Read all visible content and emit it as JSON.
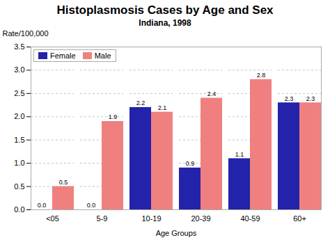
{
  "chart_data": {
    "type": "bar",
    "title": "Histoplasmosis Cases by Age and Sex",
    "subtitle": "Indiana, 1998",
    "xlabel": "Age Groups",
    "ylabel": "Rate/100,000",
    "categories": [
      "<05",
      "5-9",
      "10-19",
      "20-39",
      "40-59",
      "60+"
    ],
    "series": [
      {
        "name": "Female",
        "color": "#2222AA",
        "values": [
          0.0,
          0.0,
          2.2,
          0.9,
          1.1,
          2.3
        ],
        "value_labels": [
          "0.0",
          "0.0",
          "2.2",
          "0.9",
          "1.1",
          "2.3"
        ]
      },
      {
        "name": "Male",
        "color": "#F08080",
        "values": [
          0.5,
          1.9,
          2.1,
          2.4,
          2.8,
          2.3
        ]
      }
    ],
    "ylim": [
      0,
      3.5
    ],
    "yticks": [
      {
        "value": 0,
        "label": "0.0"
      },
      0.5,
      {
        "value": 1,
        "label": "1.0"
      },
      1.5,
      {
        "value": 2,
        "label": "2.0"
      },
      2.5,
      {
        "value": 3,
        "label": "3.0"
      },
      3.5
    ],
    "grid": true,
    "legend": "top-left",
    "data_labels": true
  }
}
